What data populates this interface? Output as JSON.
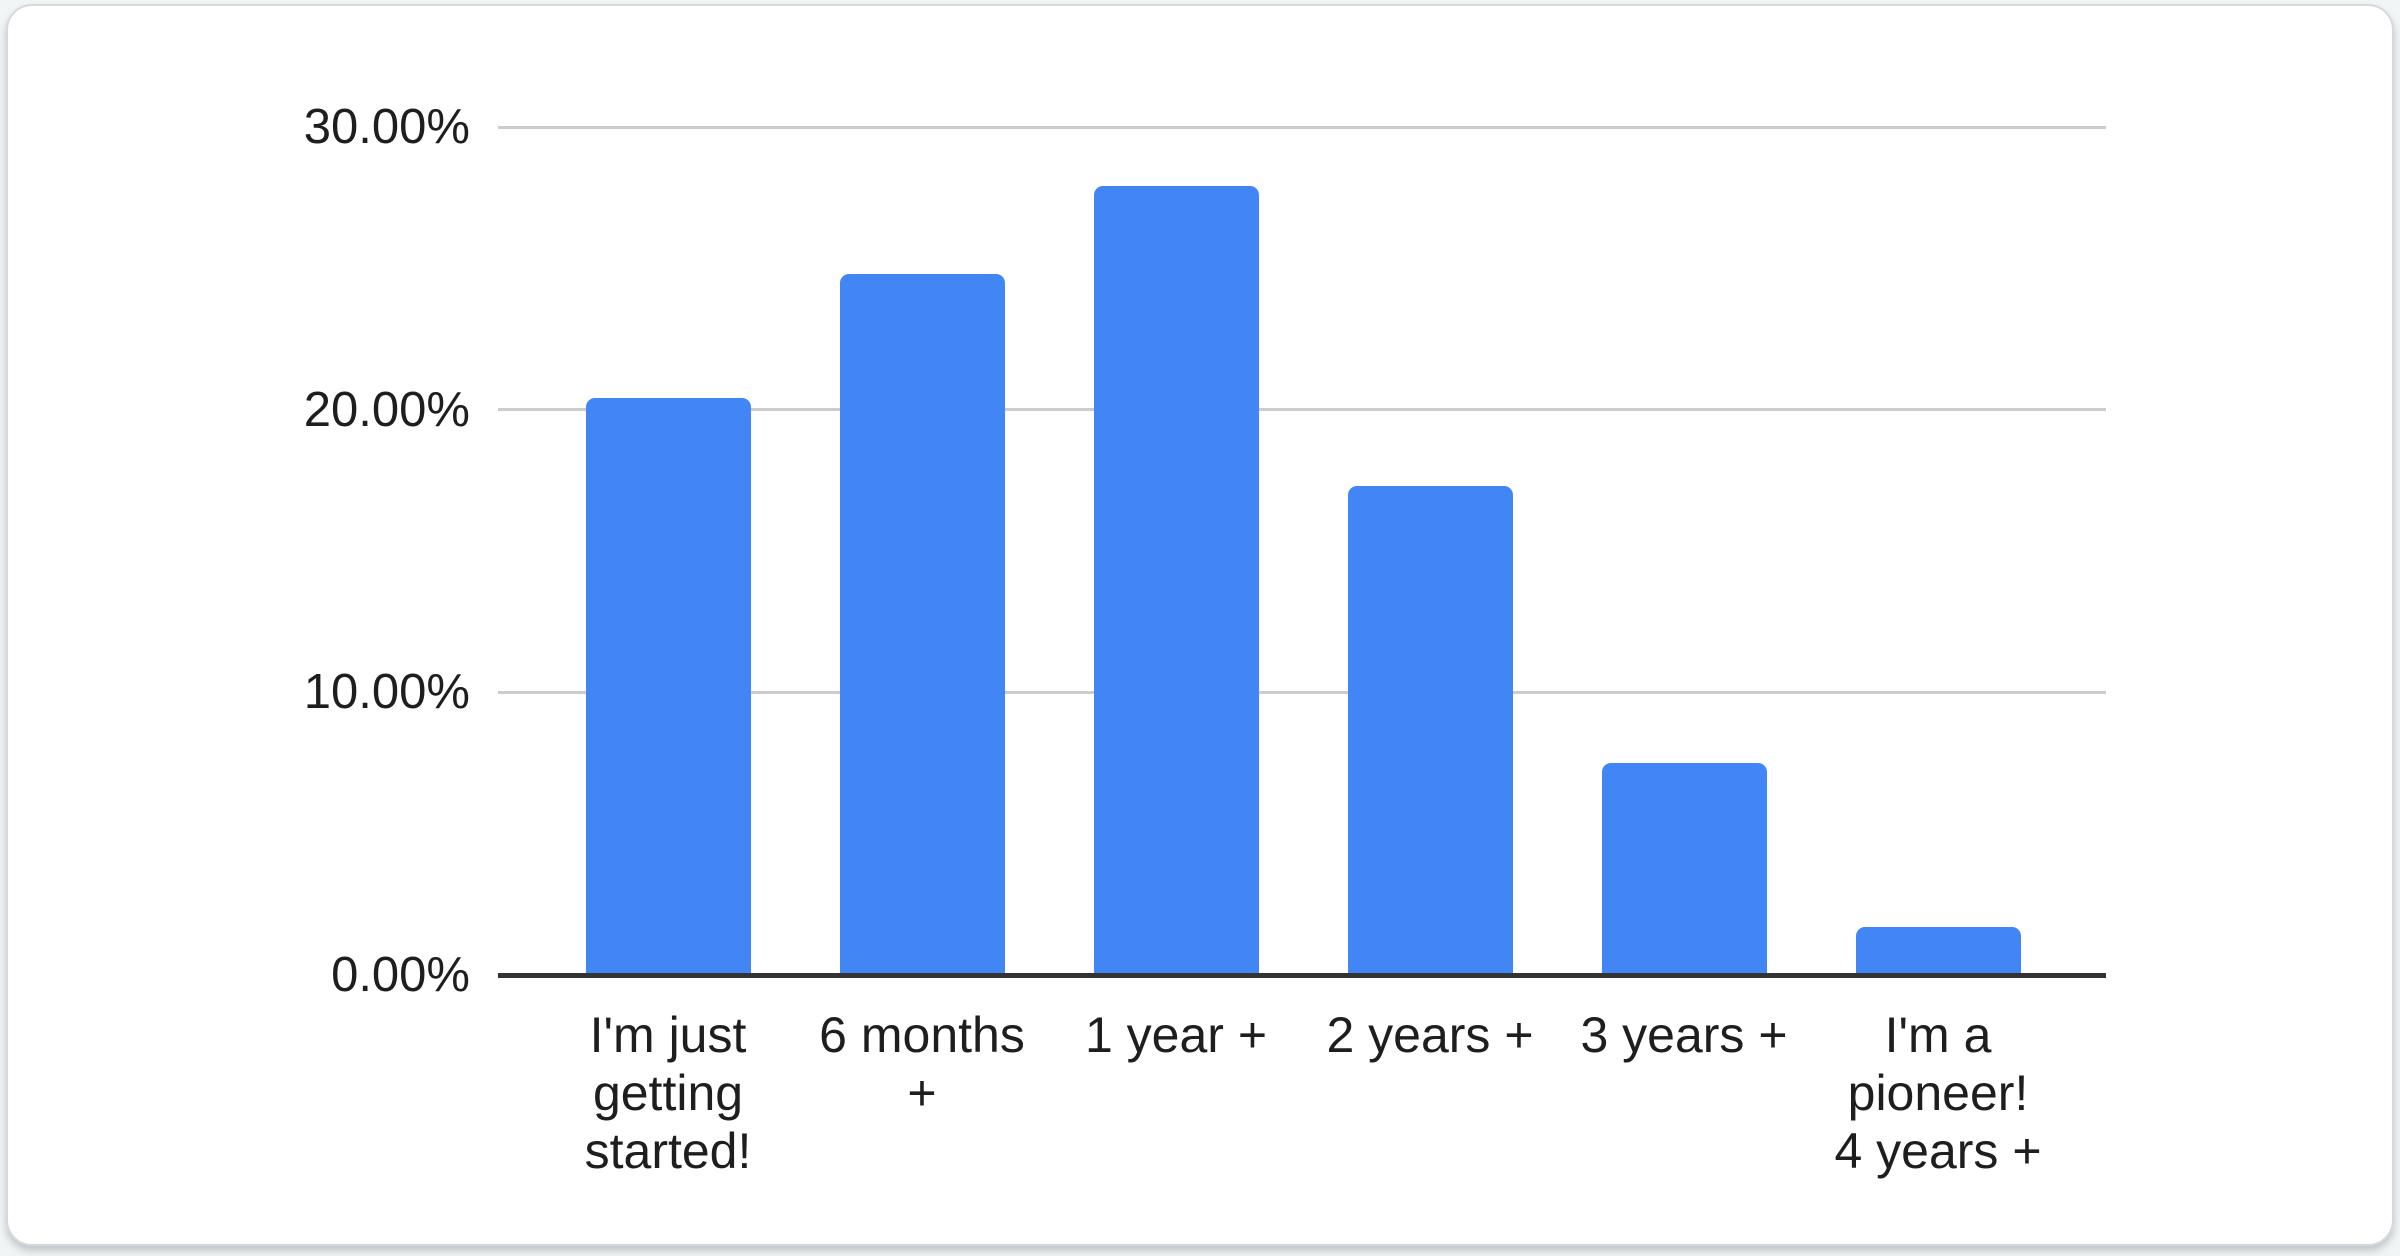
{
  "chart_data": {
    "type": "bar",
    "title": "",
    "xlabel": "",
    "ylabel": "",
    "categories": [
      "I'm just getting started!",
      "6 months +",
      "1 year +",
      "2 years +",
      "3 years +",
      "I'm a pioneer! 4 years +"
    ],
    "category_display_labels": [
      "I'm just\ngetting\nstarted!",
      "6 months\n+",
      "1 year +",
      "2 years +",
      "3 years +",
      "I'm a\npioneer!\n4 years +"
    ],
    "values": [
      20.4,
      24.8,
      27.9,
      17.3,
      7.5,
      1.7
    ],
    "value_unit": "%",
    "ylim": [
      0,
      30
    ],
    "grid": true,
    "legend": "none",
    "y_axis_ticks": [
      {
        "value": 0,
        "label": "0.00%"
      },
      {
        "value": 10,
        "label": "10.00%"
      },
      {
        "value": 20,
        "label": "20.00%"
      },
      {
        "value": 30,
        "label": "30.00%"
      }
    ],
    "colors": {
      "bar": "#4285f4",
      "gridline": "#cccccc",
      "axis_line": "#333333",
      "text": "#1e1e1e",
      "card_background": "#ffffff",
      "card_border": "#d4dadb"
    }
  }
}
